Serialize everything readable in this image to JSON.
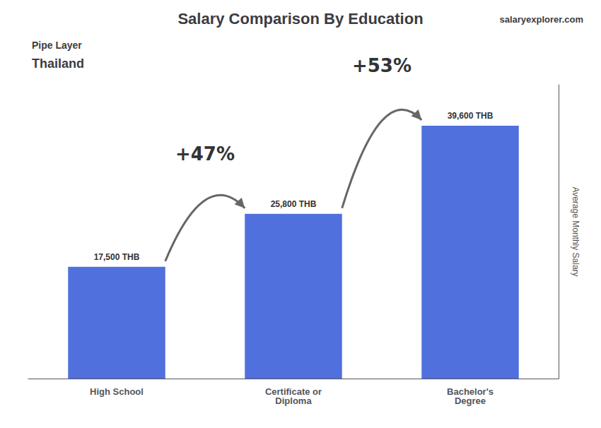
{
  "chart_data": {
    "type": "bar",
    "title": "Salary Comparison By Education",
    "subtitle": "Pipe Layer",
    "subtitle2": "Thailand",
    "credit": "salaryexplorer.com",
    "categories": [
      "High School",
      "Certificate or\nDiploma",
      "Bachelor's\nDegree"
    ],
    "values": [
      17500,
      25800,
      39600
    ],
    "value_labels": [
      "17,500 THB",
      "25,800 THB",
      "39,600 THB"
    ],
    "data_labels": true,
    "annotations": [
      "+47%",
      "+53%"
    ],
    "ylabel": "Average Monthly Salary",
    "ylim": [
      0,
      46000
    ],
    "tick_labels": "x",
    "grid": false
  }
}
